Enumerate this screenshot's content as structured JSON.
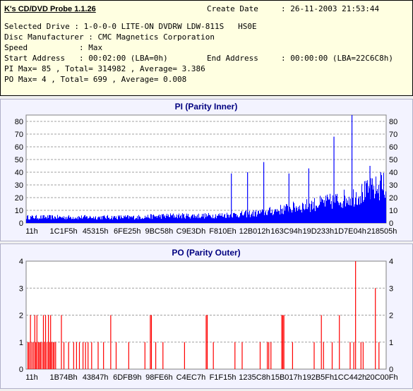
{
  "header": {
    "app_title": "K's CD/DVD Probe 1.1.26",
    "create_date_label": "Create Date",
    "create_date_value": ": 26-11-2003 21:53:44",
    "selected_drive": "Selected Drive : 1-0-0-0 LITE-ON DVDRW LDW-811S   HS0E",
    "disc_manufacturer": "Disc Manufacturer : CMC Magnetics Corporation",
    "speed": "Speed           : Max",
    "start_address": "Start Address   : 00:02:00 (LBA=0h)",
    "end_address_label": "End Address",
    "end_address_value": ": 00:00:00 (LBA=22C6C8h)",
    "pi_summary": "PI Max= 85 , Total= 314982 , Average= 3.386",
    "po_summary": "PO Max= 4 , Total= 699 , Average= 0.008"
  },
  "colors": {
    "pi_bar": "#0000ff",
    "po_bar": "#ff0000",
    "plot_bg": "#ffffff",
    "title": "#000080"
  },
  "chart_data": [
    {
      "type": "bar",
      "title": "PI (Parity Inner)",
      "ylim": [
        0,
        85
      ],
      "yticks": [
        0,
        10,
        20,
        30,
        40,
        50,
        60,
        70,
        80
      ],
      "grid": true,
      "xticklabels": [
        "11h",
        "1C1F5h",
        "45315h",
        "6FE25h",
        "9BC58h",
        "C9E3Dh",
        "F810Eh",
        "12B012h",
        "163C94h",
        "19D233h",
        "1D7E04h",
        "218505h"
      ],
      "baseline": [
        [
          0,
          4
        ],
        [
          0.1,
          4
        ],
        [
          0.2,
          4
        ],
        [
          0.3,
          4
        ],
        [
          0.4,
          5
        ],
        [
          0.5,
          5
        ],
        [
          0.55,
          5.5
        ],
        [
          0.6,
          6
        ],
        [
          0.65,
          7
        ],
        [
          0.7,
          9
        ],
        [
          0.75,
          11
        ],
        [
          0.8,
          13
        ],
        [
          0.85,
          15
        ],
        [
          0.9,
          18
        ],
        [
          0.95,
          22
        ],
        [
          1,
          26
        ]
      ],
      "spikes": [
        [
          0.57,
          39
        ],
        [
          0.615,
          40
        ],
        [
          0.66,
          48
        ],
        [
          0.73,
          39
        ],
        [
          0.785,
          43
        ],
        [
          0.855,
          68
        ],
        [
          0.905,
          85
        ],
        [
          0.955,
          45
        ],
        [
          0.985,
          40
        ]
      ]
    },
    {
      "type": "bar",
      "title": "PO (Parity Outer)",
      "ylim": [
        0,
        4
      ],
      "yticks": [
        0,
        1,
        2,
        3,
        4
      ],
      "grid": true,
      "xticklabels": [
        "11h",
        "1B74Bh",
        "43847h",
        "6DFB9h",
        "98FE6h",
        "C4EC7h",
        "F1F15h",
        "1235C8h",
        "15B017h",
        "192B5Fh",
        "1CC442h",
        "20C00Fh"
      ],
      "values": [
        [
          0.005,
          1
        ],
        [
          0.008,
          1
        ],
        [
          0.012,
          2
        ],
        [
          0.016,
          1
        ],
        [
          0.02,
          1
        ],
        [
          0.024,
          2
        ],
        [
          0.027,
          1
        ],
        [
          0.03,
          2
        ],
        [
          0.034,
          1
        ],
        [
          0.037,
          1
        ],
        [
          0.04,
          1
        ],
        [
          0.044,
          1
        ],
        [
          0.048,
          2
        ],
        [
          0.051,
          1
        ],
        [
          0.054,
          2
        ],
        [
          0.058,
          1
        ],
        [
          0.062,
          2
        ],
        [
          0.065,
          1
        ],
        [
          0.068,
          2
        ],
        [
          0.071,
          1
        ],
        [
          0.075,
          1
        ],
        [
          0.078,
          1
        ],
        [
          0.082,
          1
        ],
        [
          0.098,
          2
        ],
        [
          0.105,
          1
        ],
        [
          0.118,
          1
        ],
        [
          0.132,
          1
        ],
        [
          0.14,
          1
        ],
        [
          0.148,
          1
        ],
        [
          0.158,
          1
        ],
        [
          0.165,
          1
        ],
        [
          0.172,
          1
        ],
        [
          0.182,
          1
        ],
        [
          0.2,
          1
        ],
        [
          0.215,
          1
        ],
        [
          0.235,
          2
        ],
        [
          0.25,
          1
        ],
        [
          0.285,
          1
        ],
        [
          0.33,
          1
        ],
        [
          0.345,
          2
        ],
        [
          0.348,
          2
        ],
        [
          0.36,
          1
        ],
        [
          0.38,
          1
        ],
        [
          0.44,
          1
        ],
        [
          0.52,
          1
        ],
        [
          0.5,
          2
        ],
        [
          0.503,
          2
        ],
        [
          0.58,
          1
        ],
        [
          0.6,
          1
        ],
        [
          0.65,
          1
        ],
        [
          0.67,
          1
        ],
        [
          0.674,
          1
        ],
        [
          0.68,
          1
        ],
        [
          0.71,
          2
        ],
        [
          0.713,
          2
        ],
        [
          0.716,
          2
        ],
        [
          0.74,
          1
        ],
        [
          0.8,
          1
        ],
        [
          0.82,
          2
        ],
        [
          0.826,
          1
        ],
        [
          0.85,
          1
        ],
        [
          0.87,
          2
        ],
        [
          0.9,
          1
        ],
        [
          0.91,
          1
        ],
        [
          0.915,
          4
        ],
        [
          0.93,
          1
        ],
        [
          0.936,
          1
        ],
        [
          0.97,
          3
        ],
        [
          0.98,
          1
        ]
      ]
    }
  ]
}
